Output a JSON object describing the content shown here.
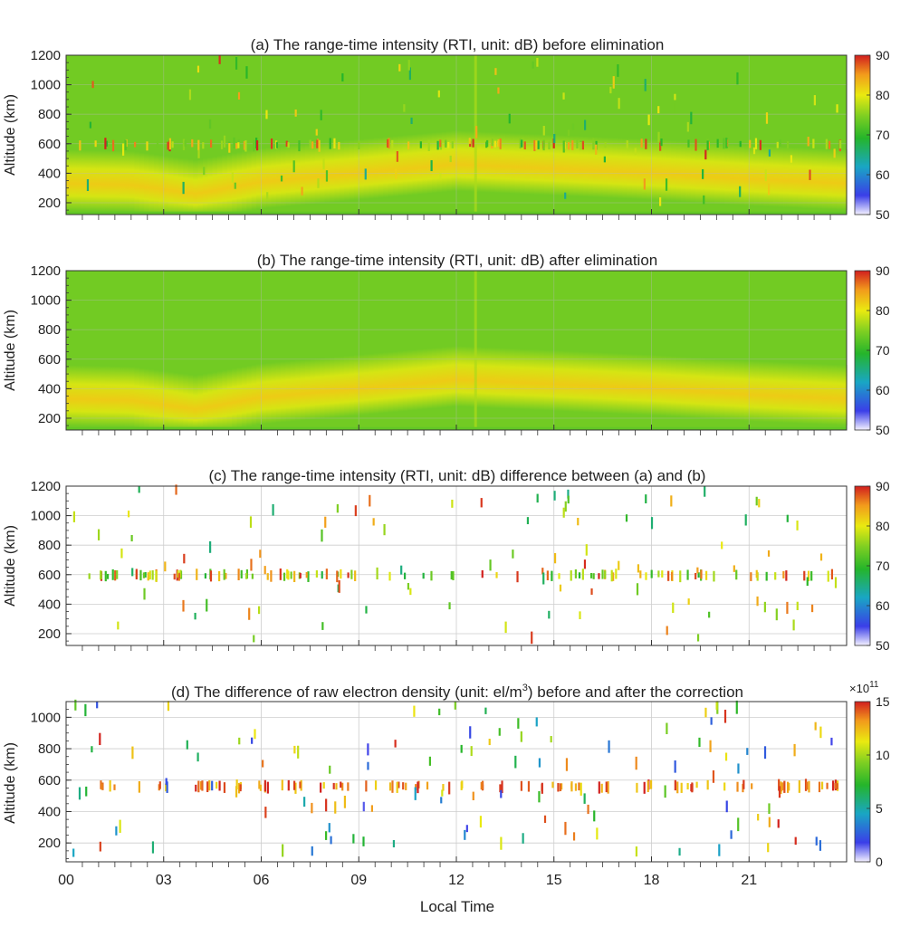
{
  "figure": {
    "xlabel": "Local Time",
    "ylabel": "Altitude (km)"
  },
  "chart_data": [
    {
      "type": "heatmap",
      "title": "(a) The range-time intensity (RTI, unit: dB) before elimination",
      "xlabel": "",
      "ylabel": "Altitude (km)",
      "xlim": [
        0,
        24
      ],
      "ylim": [
        120,
        1200
      ],
      "x_ticks": [
        "00",
        "03",
        "06",
        "09",
        "12",
        "15",
        "18",
        "21"
      ],
      "y_ticks": [
        200,
        400,
        600,
        800,
        1000,
        1200
      ],
      "colorbar": {
        "min": 50,
        "max": 90,
        "ticks": [
          50,
          60,
          70,
          80,
          90
        ],
        "exponent": ""
      },
      "background_db": 74,
      "layer_peak_db": 82,
      "layer_peak_altitude_km": [
        330,
        320,
        260,
        340,
        400,
        460,
        430,
        400,
        360,
        330
      ],
      "layer_peak_times_h": [
        0,
        2,
        4,
        6,
        9,
        12,
        15,
        18,
        21,
        24
      ],
      "has_spikes": true,
      "spike_band_km": [
        560,
        630
      ]
    },
    {
      "type": "heatmap",
      "title": "(b) The range-time intensity (RTI, unit: dB) after elimination",
      "xlabel": "",
      "ylabel": "Altitude (km)",
      "xlim": [
        0,
        24
      ],
      "ylim": [
        120,
        1200
      ],
      "x_ticks": [
        "00",
        "03",
        "06",
        "09",
        "12",
        "15",
        "18",
        "21"
      ],
      "y_ticks": [
        200,
        400,
        600,
        800,
        1000,
        1200
      ],
      "colorbar": {
        "min": 50,
        "max": 90,
        "ticks": [
          50,
          60,
          70,
          80,
          90
        ],
        "exponent": ""
      },
      "background_db": 74,
      "layer_peak_db": 82,
      "layer_peak_altitude_km": [
        330,
        320,
        260,
        340,
        400,
        460,
        430,
        400,
        360,
        330
      ],
      "layer_peak_times_h": [
        0,
        2,
        4,
        6,
        9,
        12,
        15,
        18,
        21,
        24
      ],
      "has_spikes": false,
      "spike_band_km": [
        560,
        630
      ]
    },
    {
      "type": "heatmap",
      "title": "(c) The range-time intensity (RTI, unit: dB) difference between (a) and (b)",
      "xlabel": "",
      "ylabel": "Altitude (km)",
      "xlim": [
        0,
        24
      ],
      "ylim": [
        120,
        1200
      ],
      "x_ticks": [
        "00",
        "03",
        "06",
        "09",
        "12",
        "15",
        "18",
        "21"
      ],
      "y_ticks": [
        200,
        400,
        600,
        800,
        1000,
        1200
      ],
      "colorbar": {
        "min": 50,
        "max": 90,
        "ticks": [
          50,
          60,
          70,
          80,
          90
        ],
        "exponent": ""
      },
      "has_spikes": true,
      "spike_band_km": [
        560,
        630
      ]
    },
    {
      "type": "heatmap",
      "title_parts": [
        "(d) The difference of raw electron density (unit: el/m",
        "3",
        ") before and after the correction"
      ],
      "xlabel": "Local Time",
      "ylabel": "Altitude (km)",
      "xlim": [
        0,
        24
      ],
      "ylim": [
        80,
        1100
      ],
      "x_ticks": [
        "00",
        "03",
        "06",
        "09",
        "12",
        "15",
        "18",
        "21"
      ],
      "y_ticks": [
        200,
        400,
        600,
        800,
        1000
      ],
      "colorbar": {
        "min": 0,
        "max": 15,
        "ticks": [
          0,
          5,
          10,
          15
        ],
        "exponent": "×10",
        "exponent_power": "11"
      },
      "has_spikes": true,
      "spike_band_km": [
        520,
        600
      ]
    }
  ]
}
